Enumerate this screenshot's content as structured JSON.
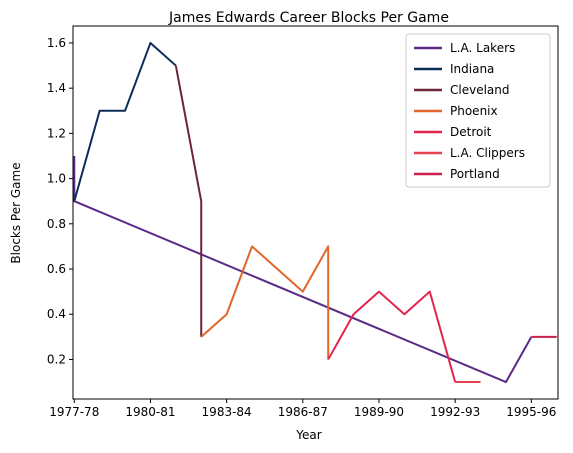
{
  "chart_data": {
    "type": "line",
    "title": "James Edwards  Career Blocks Per Game",
    "xlabel": "Year",
    "ylabel": "Blocks Per Game",
    "x_ticks": [
      "1977-78",
      "1980-81",
      "1983-84",
      "1986-87",
      "1989-90",
      "1992-93",
      "1995-96"
    ],
    "y_ticks": [
      "0.2",
      "0.4",
      "0.6",
      "0.8",
      "1.0",
      "1.2",
      "1.4",
      "1.6"
    ],
    "xlim": [
      1976.95,
      1996.05
    ],
    "ylim": [
      0.025,
      1.675
    ],
    "legend_position": "top-right",
    "grid": false,
    "series": [
      {
        "name": "L.A. Lakers",
        "color": "#5b2a86",
        "points": [
          [
            1977,
            1.1
          ],
          [
            1977,
            0.9
          ],
          [
            1994,
            0.1
          ],
          [
            1995,
            0.3
          ]
        ]
      },
      {
        "name": "Indiana",
        "color": "#0b2d57",
        "points": [
          [
            1977,
            0.9
          ],
          [
            1978,
            1.3
          ],
          [
            1979,
            1.3
          ],
          [
            1980,
            1.6
          ],
          [
            1981,
            1.5
          ]
        ]
      },
      {
        "name": "Cleveland",
        "color": "#6b2637",
        "points": [
          [
            1981,
            1.5
          ],
          [
            1982,
            0.9
          ],
          [
            1982,
            0.3
          ]
        ]
      },
      {
        "name": "Phoenix",
        "color": "#e0662a",
        "points": [
          [
            1982,
            0.3
          ],
          [
            1983,
            0.4
          ],
          [
            1984,
            0.7
          ],
          [
            1986,
            0.5
          ],
          [
            1987,
            0.7
          ],
          [
            1987,
            0.2
          ]
        ]
      },
      {
        "name": "Detroit",
        "color": "#e3244f",
        "points": [
          [
            1987,
            0.2
          ],
          [
            1988,
            0.4
          ],
          [
            1989,
            0.5
          ],
          [
            1990,
            0.4
          ],
          [
            1991,
            0.5
          ],
          [
            1992,
            0.1
          ]
        ]
      },
      {
        "name": "L.A. Clippers",
        "color": "#e4404e",
        "points": [
          [
            1992,
            0.1
          ],
          [
            1993,
            0.1
          ]
        ]
      },
      {
        "name": "Portland",
        "color": "#cc1f4e",
        "points": [
          [
            1995,
            0.3
          ],
          [
            1996,
            0.3
          ]
        ]
      }
    ]
  }
}
